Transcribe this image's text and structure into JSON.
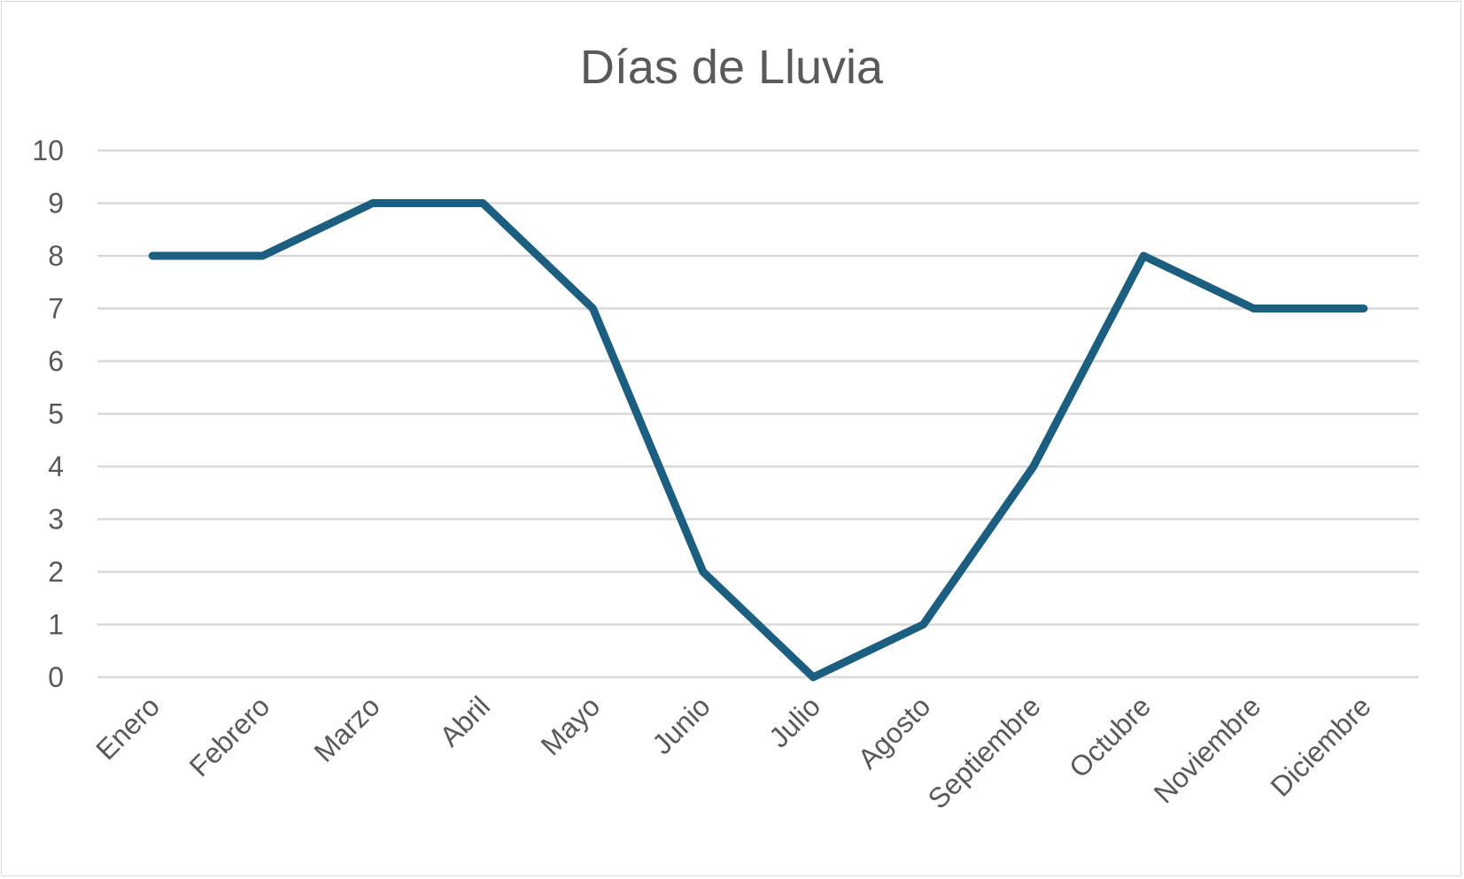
{
  "chart_data": {
    "type": "line",
    "title": "Días de Lluvia",
    "xlabel": "",
    "ylabel": "",
    "categories": [
      "Enero",
      "Febrero",
      "Marzo",
      "Abril",
      "Mayo",
      "Junio",
      "Julio",
      "Agosto",
      "Septiembre",
      "Octubre",
      "Noviembre",
      "Diciembre"
    ],
    "series": [
      {
        "values": [
          8,
          8,
          9,
          9,
          7,
          2,
          0,
          1,
          4,
          8,
          7,
          7
        ],
        "color": "#1b5e80"
      }
    ],
    "ylim": [
      0,
      10
    ],
    "yticks": [
      "0",
      "1",
      "2",
      "3",
      "4",
      "5",
      "6",
      "7",
      "8",
      "9",
      "10"
    ],
    "grid": true,
    "legend": "none"
  }
}
